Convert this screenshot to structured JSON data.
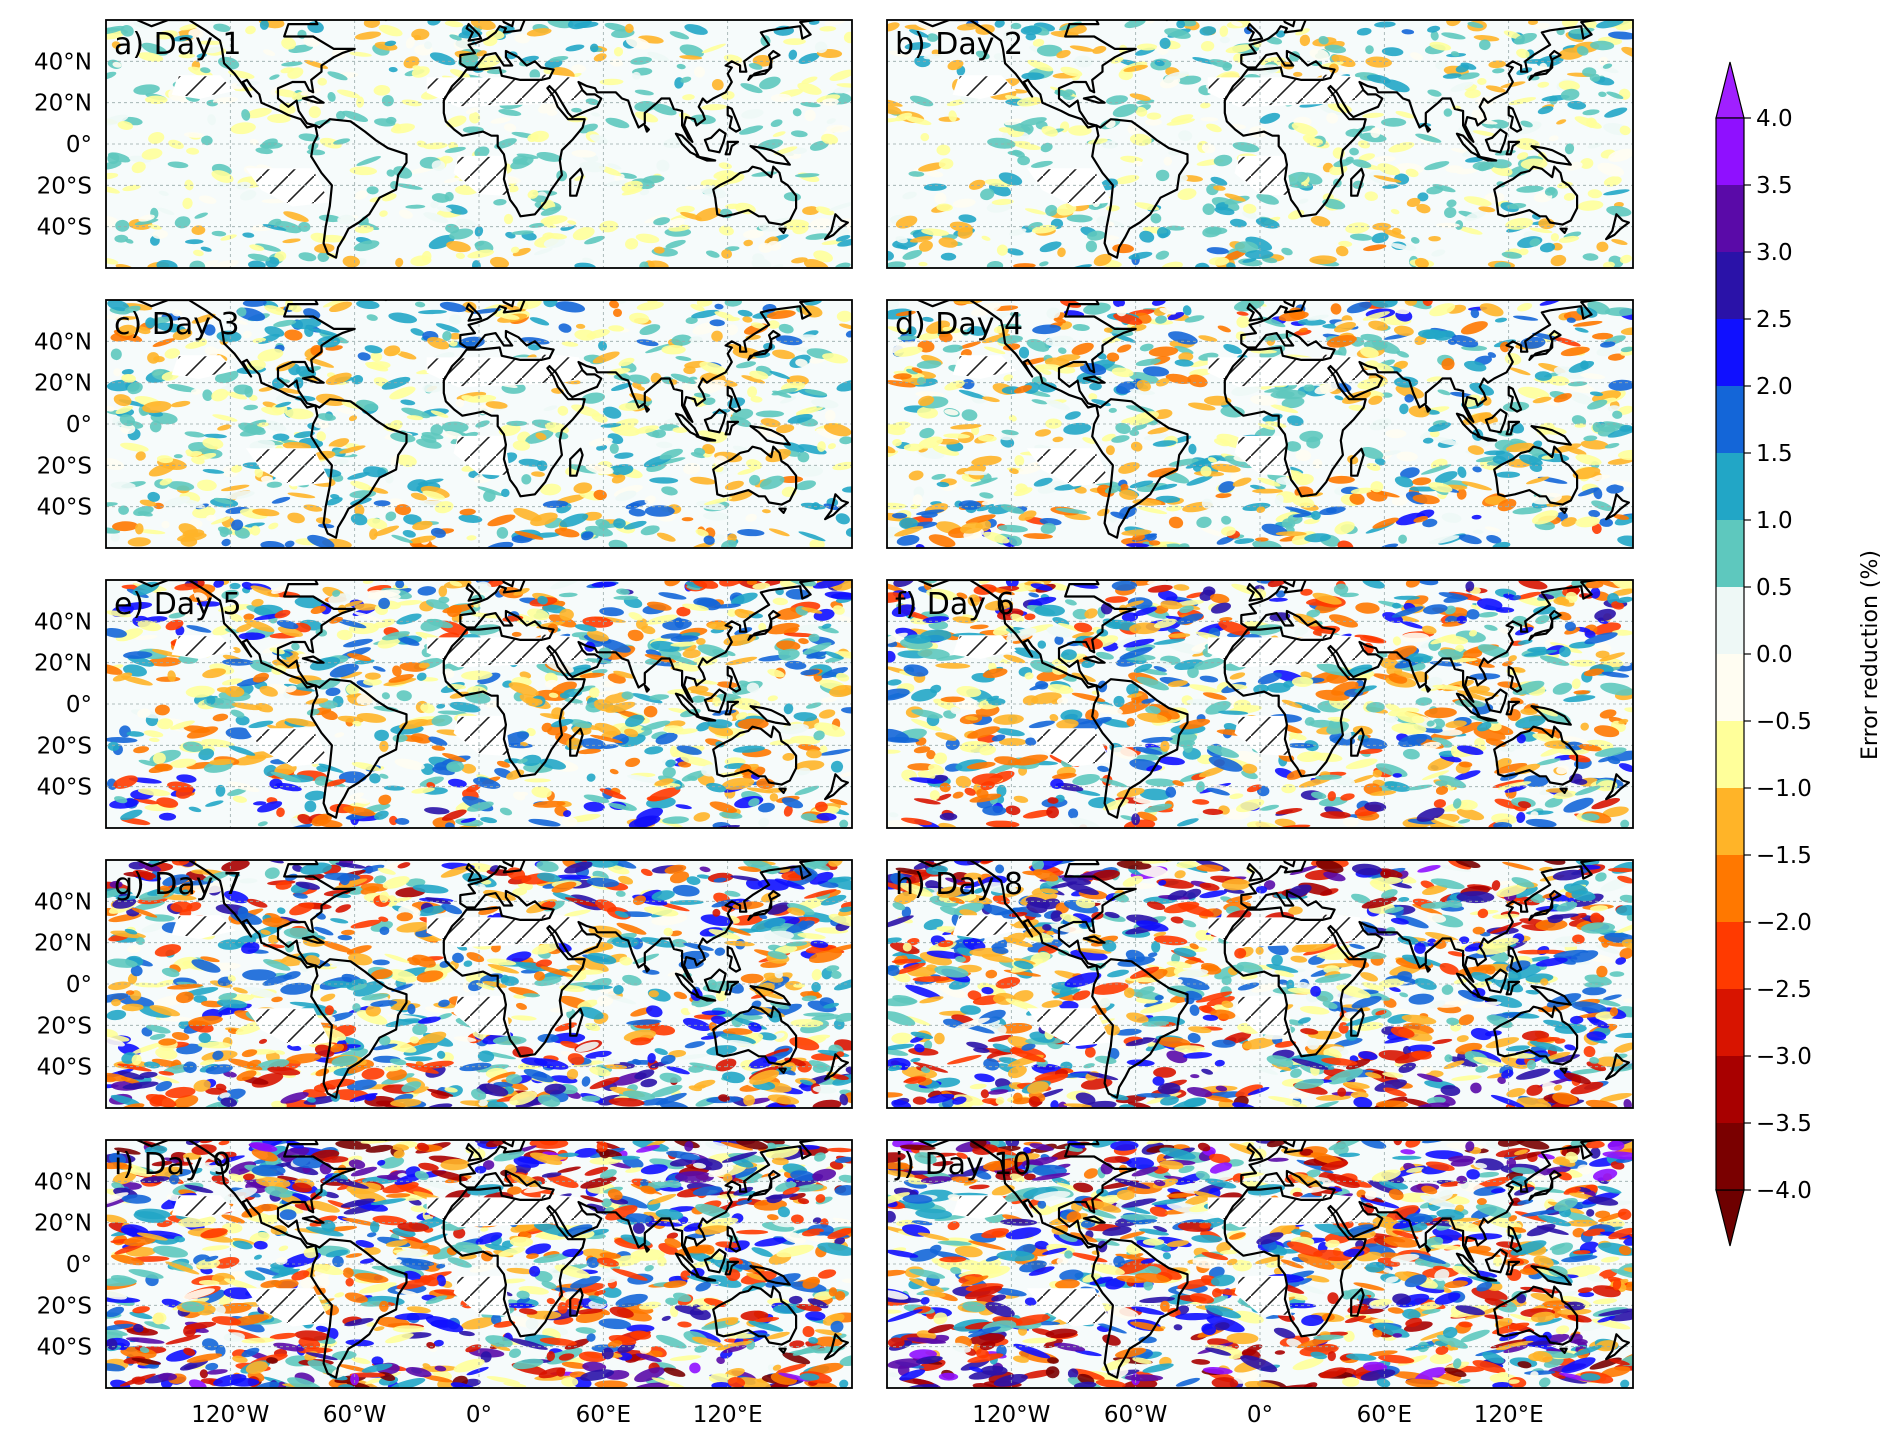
{
  "panels": [
    {
      "id": "a",
      "label": "a) Day 1",
      "intensity": 0.22
    },
    {
      "id": "b",
      "label": "b) Day 2",
      "intensity": 0.3
    },
    {
      "id": "c",
      "label": "c) Day 3",
      "intensity": 0.4
    },
    {
      "id": "d",
      "label": "d) Day 4",
      "intensity": 0.5
    },
    {
      "id": "e",
      "label": "e) Day 5",
      "intensity": 0.6
    },
    {
      "id": "f",
      "label": "f) Day 6",
      "intensity": 0.7
    },
    {
      "id": "g",
      "label": "g) Day 7",
      "intensity": 0.8
    },
    {
      "id": "h",
      "label": "h) Day 8",
      "intensity": 0.88
    },
    {
      "id": "i",
      "label": "i) Day 9",
      "intensity": 0.95
    },
    {
      "id": "j",
      "label": "j) Day 10",
      "intensity": 1.0
    }
  ],
  "lat_ticks": [
    "40°N",
    "20°N",
    "0°",
    "20°S",
    "40°S"
  ],
  "lon_ticks": [
    "120°W",
    "60°W",
    "0°",
    "60°E",
    "120°E"
  ],
  "colorbar": {
    "label": "Error reduction (%)",
    "ticks": [
      "4.0",
      "3.5",
      "3.0",
      "2.5",
      "2.0",
      "1.5",
      "1.0",
      "0.5",
      "0.0",
      "−0.5",
      "−1.0",
      "−1.5",
      "−2.0",
      "−2.5",
      "−3.0",
      "−3.5",
      "−4.0"
    ],
    "colors_top_to_bottom": [
      "#8f10ff",
      "#5a0aa8",
      "#2a12a8",
      "#1010ff",
      "#1466d8",
      "#22a6c6",
      "#5ec8be",
      "#eef8f6",
      "#fffdf2",
      "#ffff9a",
      "#ffb428",
      "#ff7800",
      "#ff3a00",
      "#d81400",
      "#a80000",
      "#7a0000"
    ],
    "extend_top": "#a020ff",
    "extend_bottom": "#6e0000"
  },
  "chart_data": {
    "type": "heatmap",
    "description_of_axes": "longitude -180 to 180, latitude -60 to 60",
    "xlim": [
      -180,
      180
    ],
    "ylim": [
      -60,
      60
    ],
    "colorbar_range": [
      -4.0,
      4.0
    ],
    "colorbar_levels": [
      -4.0,
      -3.5,
      -3.0,
      -2.5,
      -2.0,
      -1.5,
      -1.0,
      -0.5,
      0.0,
      0.5,
      1.0,
      1.5,
      2.0,
      2.5,
      3.0,
      3.5,
      4.0
    ],
    "colorbar_extend": "both",
    "panels": [
      "a) Day 1",
      "b) Day 2",
      "c) Day 3",
      "d) Day 4",
      "e) Day 5",
      "f) Day 6",
      "g) Day 7",
      "h) Day 8",
      "i) Day 9",
      "j) Day 10"
    ],
    "grid": true
  }
}
